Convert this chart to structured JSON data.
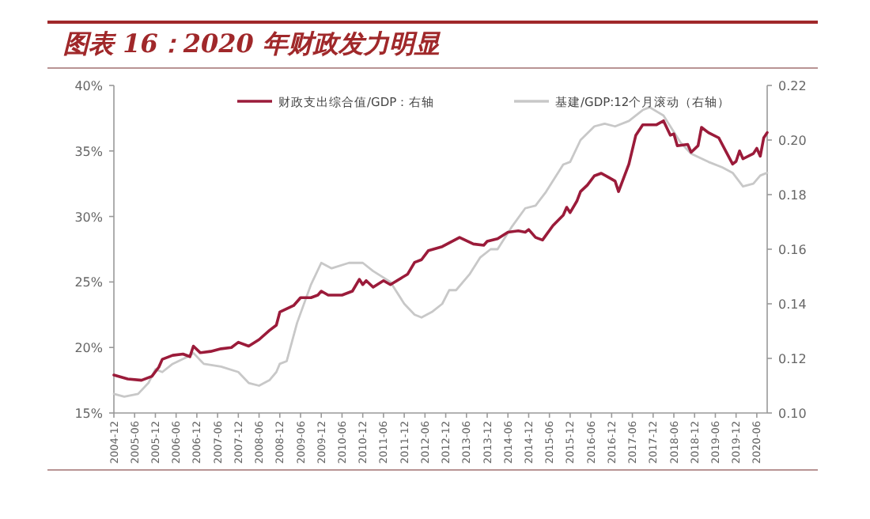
{
  "chart_data": {
    "type": "line",
    "title": "图表 16：2020 年财政发力明显",
    "xlim": [
      "2004-12",
      "2020-09"
    ],
    "xticks": [
      "2004-12",
      "2005-06",
      "2005-12",
      "2006-06",
      "2006-12",
      "2007-06",
      "2007-12",
      "2008-06",
      "2008-12",
      "2009-06",
      "2009-12",
      "2010-06",
      "2010-12",
      "2011-06",
      "2011-12",
      "2012-06",
      "2012-12",
      "2013-06",
      "2013-12",
      "2014-06",
      "2014-12",
      "2015-06",
      "2015-12",
      "2016-06",
      "2016-12",
      "2017-06",
      "2017-12",
      "2018-06",
      "2018-12",
      "2019-06",
      "2019-12",
      "2020-06"
    ],
    "ylim": [
      15,
      40
    ],
    "yticks": [
      {
        "value": 15,
        "label": "15%"
      },
      {
        "value": 20,
        "label": "20%"
      },
      {
        "value": 25,
        "label": "25%"
      },
      {
        "value": 30,
        "label": "30%"
      },
      {
        "value": 35,
        "label": "35%"
      },
      {
        "value": 40,
        "label": "40%"
      }
    ],
    "y2lim": [
      0.1,
      0.22
    ],
    "y2ticks": [
      {
        "value": 0.1,
        "label": "0.10"
      },
      {
        "value": 0.12,
        "label": "0.12"
      },
      {
        "value": 0.14,
        "label": "0.14"
      },
      {
        "value": 0.16,
        "label": "0.16"
      },
      {
        "value": 0.18,
        "label": "0.18"
      },
      {
        "value": 0.2,
        "label": "0.20"
      },
      {
        "value": 0.22,
        "label": "0.22"
      }
    ],
    "grid": false,
    "legend": "top",
    "marker": "none",
    "line_style": "solid",
    "series": [
      {
        "name": "财政支出综合值/GDP：右轴",
        "color": "#9b1b3a",
        "x": [
          "2004-12",
          "2005-04",
          "2005-08",
          "2005-11",
          "2006-01",
          "2006-02",
          "2006-05",
          "2006-08",
          "2006-10",
          "2006-11",
          "2007-01",
          "2007-04",
          "2007-07",
          "2007-10",
          "2007-12",
          "2008-03",
          "2008-06",
          "2008-09",
          "2008-11",
          "2008-12",
          "2009-04",
          "2009-06",
          "2009-09",
          "2009-11",
          "2009-12",
          "2010-02",
          "2010-06",
          "2010-09",
          "2010-11",
          "2010-12",
          "2011-01",
          "2011-03",
          "2011-06",
          "2011-08",
          "2012-01",
          "2012-03",
          "2012-05",
          "2012-07",
          "2012-11",
          "2013-04",
          "2013-08",
          "2013-11",
          "2013-12",
          "2014-03",
          "2014-06",
          "2014-09",
          "2014-11",
          "2014-12",
          "2015-02",
          "2015-04",
          "2015-07",
          "2015-10",
          "2015-11",
          "2015-12",
          "2016-02",
          "2016-03",
          "2016-05",
          "2016-07",
          "2016-09",
          "2016-11",
          "2017-01",
          "2017-02",
          "2017-05",
          "2017-07",
          "2017-09",
          "2018-01",
          "2018-03",
          "2018-05",
          "2018-06",
          "2018-07",
          "2018-10",
          "2018-11",
          "2019-01",
          "2019-02",
          "2019-04",
          "2019-07",
          "2019-09",
          "2019-11",
          "2019-12",
          "2020-01",
          "2020-02",
          "2020-05",
          "2020-06",
          "2020-07",
          "2020-08",
          "2020-09"
        ],
        "values": [
          17.9,
          17.6,
          17.5,
          17.8,
          18.5,
          19.1,
          19.4,
          19.5,
          19.3,
          20.1,
          19.6,
          19.7,
          19.9,
          20.0,
          20.4,
          20.1,
          20.6,
          21.3,
          21.7,
          22.7,
          23.2,
          23.8,
          23.8,
          24.0,
          24.3,
          24.0,
          24.0,
          24.3,
          25.2,
          24.8,
          25.1,
          24.6,
          25.1,
          24.8,
          25.6,
          26.5,
          26.7,
          27.4,
          27.7,
          28.4,
          27.9,
          27.8,
          28.1,
          28.3,
          28.8,
          28.9,
          28.8,
          29.0,
          28.4,
          28.2,
          29.3,
          30.1,
          30.7,
          30.3,
          31.2,
          31.9,
          32.4,
          33.1,
          33.3,
          33.0,
          32.7,
          31.9,
          34.0,
          36.2,
          37.0,
          37.0,
          37.3,
          36.2,
          36.3,
          35.4,
          35.5,
          34.9,
          35.4,
          36.8,
          36.4,
          36.0,
          35.0,
          34.0,
          34.2,
          35.0,
          34.4,
          34.8,
          35.2,
          34.6,
          36.0,
          36.4
        ]
      },
      {
        "name": "基建/GDP:12个月滚动（右轴）",
        "color": "#c8c8c8",
        "axis": "y2",
        "x": [
          "2004-12",
          "2005-03",
          "2005-07",
          "2005-10",
          "2005-12",
          "2006-02",
          "2006-05",
          "2006-10",
          "2006-11",
          "2007-02",
          "2007-07",
          "2007-12",
          "2008-03",
          "2008-06",
          "2008-09",
          "2008-11",
          "2008-12",
          "2009-02",
          "2009-05",
          "2009-09",
          "2009-12",
          "2010-03",
          "2010-08",
          "2010-12",
          "2011-03",
          "2011-08",
          "2011-12",
          "2012-03",
          "2012-05",
          "2012-08",
          "2012-11",
          "2013-01",
          "2013-03",
          "2013-07",
          "2013-10",
          "2014-01",
          "2014-03",
          "2014-07",
          "2014-11",
          "2015-02",
          "2015-05",
          "2015-10",
          "2015-12",
          "2016-03",
          "2016-07",
          "2016-10",
          "2017-01",
          "2017-05",
          "2017-09",
          "2017-11",
          "2018-03",
          "2018-06",
          "2018-08",
          "2018-11",
          "2019-04",
          "2019-08",
          "2019-11",
          "2020-02",
          "2020-05",
          "2020-07",
          "2020-09"
        ],
        "values": [
          0.107,
          0.106,
          0.107,
          0.111,
          0.116,
          0.115,
          0.118,
          0.121,
          0.122,
          0.118,
          0.117,
          0.115,
          0.111,
          0.11,
          0.112,
          0.115,
          0.118,
          0.119,
          0.133,
          0.147,
          0.155,
          0.153,
          0.155,
          0.155,
          0.152,
          0.148,
          0.14,
          0.136,
          0.135,
          0.137,
          0.14,
          0.145,
          0.145,
          0.151,
          0.157,
          0.16,
          0.16,
          0.168,
          0.175,
          0.176,
          0.181,
          0.191,
          0.192,
          0.2,
          0.205,
          0.206,
          0.205,
          0.207,
          0.211,
          0.212,
          0.209,
          0.203,
          0.199,
          0.195,
          0.192,
          0.19,
          0.188,
          0.183,
          0.184,
          0.187,
          0.188
        ]
      }
    ]
  }
}
